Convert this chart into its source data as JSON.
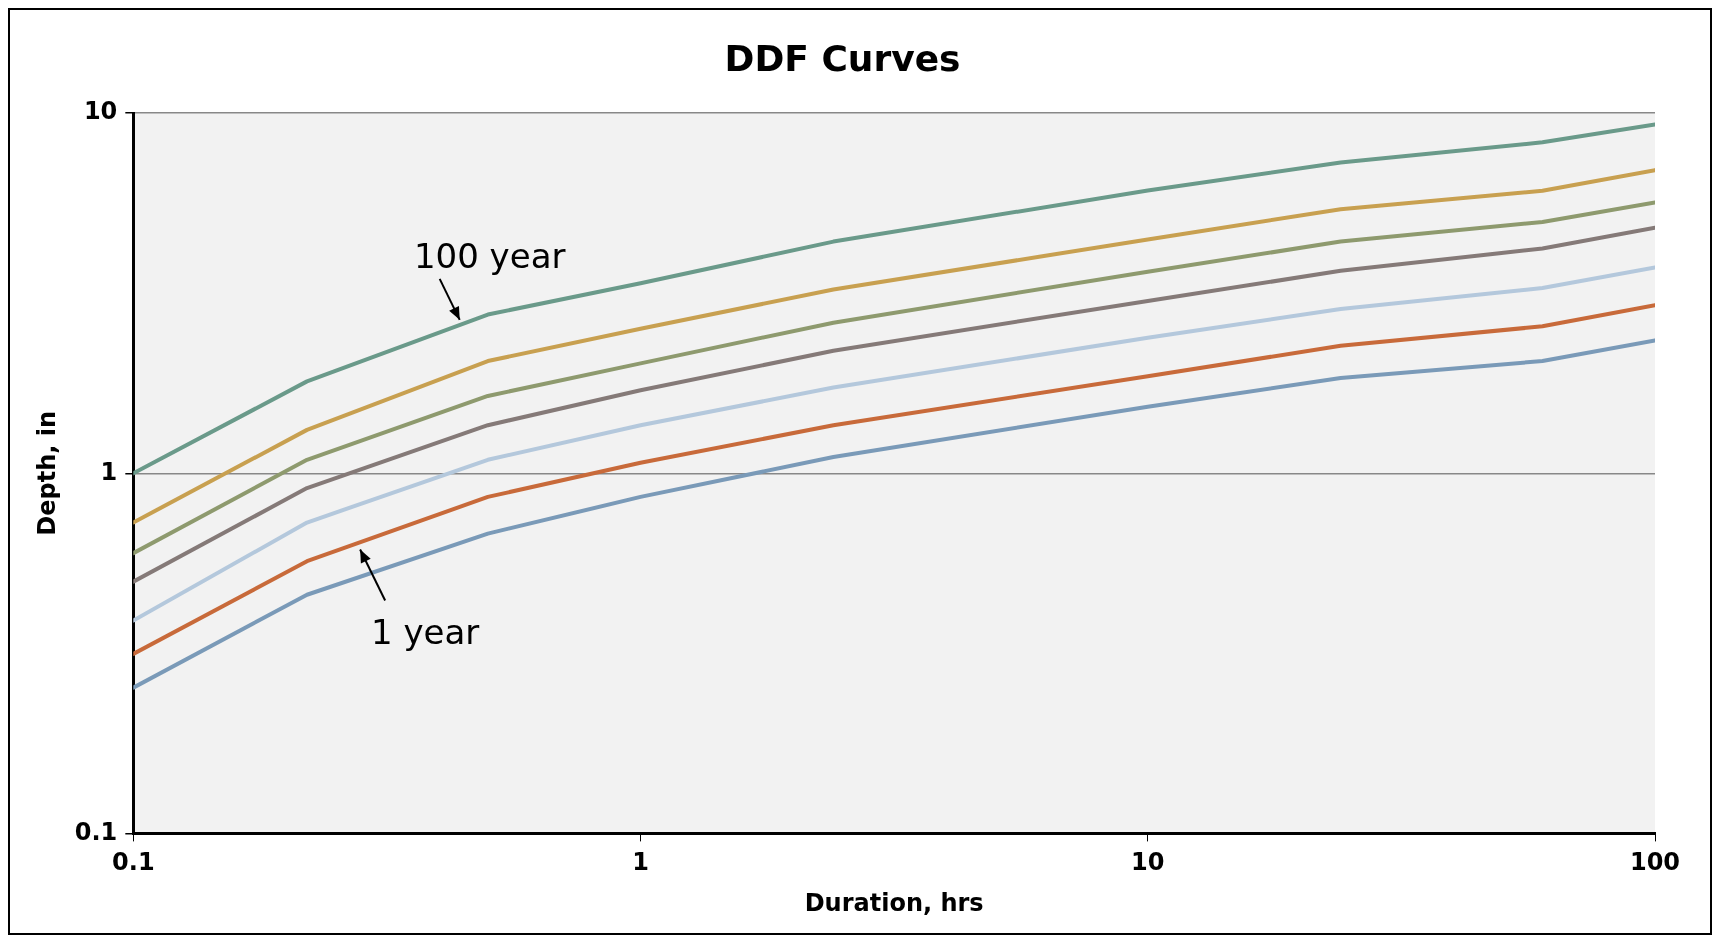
{
  "chart_data": {
    "type": "line",
    "title": "DDF Curves",
    "xlabel": "Duration, hrs",
    "ylabel": "Depth, in",
    "log": "xy",
    "grid": "y",
    "legend": false,
    "marker": "none",
    "line_style": "solid",
    "x": [
      0.1,
      0.22,
      0.5,
      1,
      2.4,
      10,
      24,
      60,
      100
    ],
    "xlim": [
      0.1,
      100
    ],
    "xticks": [
      0.1,
      1,
      10,
      100
    ],
    "ylim": [
      0.1,
      10
    ],
    "yticks": [
      0.1,
      1,
      10
    ],
    "series": [
      {
        "color": "#6a9a8a",
        "values": [
          1.0,
          1.8,
          2.76,
          3.37,
          4.4,
          6.1,
          7.3,
          8.3,
          9.3
        ]
      },
      {
        "color": "#c8a050",
        "values": [
          0.73,
          1.32,
          2.05,
          2.52,
          3.24,
          4.46,
          5.41,
          6.09,
          6.95
        ]
      },
      {
        "color": "#8e9a6e",
        "values": [
          0.6,
          1.09,
          1.64,
          2.02,
          2.62,
          3.63,
          4.4,
          4.99,
          5.65
        ]
      },
      {
        "color": "#857a78",
        "values": [
          0.5,
          0.91,
          1.36,
          1.7,
          2.19,
          3.01,
          3.65,
          4.21,
          4.81
        ]
      },
      {
        "color": "#b4c8dc",
        "values": [
          0.39,
          0.73,
          1.09,
          1.36,
          1.73,
          2.38,
          2.86,
          3.27,
          3.73
        ]
      },
      {
        "color": "#c86a3a",
        "values": [
          0.315,
          0.57,
          0.86,
          1.07,
          1.36,
          1.86,
          2.26,
          2.56,
          2.93
        ]
      },
      {
        "color": "#7a9ab8",
        "values": [
          0.254,
          0.46,
          0.68,
          0.86,
          1.11,
          1.53,
          1.84,
          2.05,
          2.34
        ]
      }
    ],
    "annotations": [
      {
        "text": "100 year",
        "x": 0.44,
        "y": 2.6
      },
      {
        "text": "1 year",
        "x": 0.28,
        "y": 0.63
      }
    ]
  }
}
